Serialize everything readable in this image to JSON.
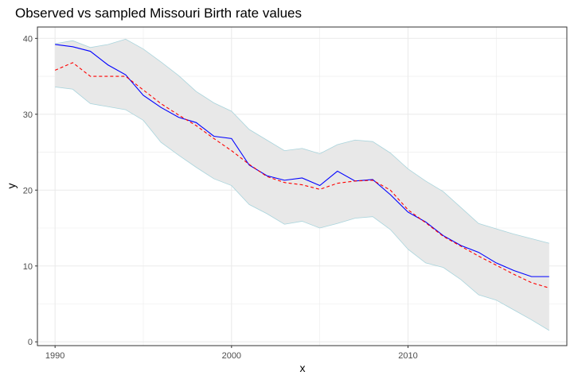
{
  "chart_data": {
    "type": "line",
    "title": "Observed vs sampled Missouri Birth rate values",
    "xlabel": "x",
    "ylabel": "y",
    "xlim": [
      1989,
      2019
    ],
    "ylim": [
      -0.5,
      41.5
    ],
    "x_ticks": [
      1990,
      2000,
      2010
    ],
    "y_ticks": [
      0,
      10,
      20,
      30,
      40
    ],
    "grid": true,
    "legend": "none",
    "colors": {
      "observed": "#0000ff",
      "sampled": "#ff0000",
      "band_fill": "#e8e8e8",
      "band_edge": "#a9d4dc",
      "grid": "#ebebeb",
      "axis_border": "#333333"
    },
    "x": [
      1990,
      1991,
      1992,
      1993,
      1994,
      1995,
      1996,
      1997,
      1998,
      1999,
      2000,
      2001,
      2002,
      2003,
      2004,
      2005,
      2006,
      2007,
      2008,
      2009,
      2010,
      2011,
      2012,
      2013,
      2014,
      2015,
      2016,
      2017,
      2018
    ],
    "series": [
      {
        "key": "observed",
        "style": "solid",
        "values": [
          39.2,
          38.9,
          38.3,
          36.5,
          35.2,
          32.5,
          30.9,
          29.6,
          28.9,
          27.1,
          26.8,
          23.3,
          21.9,
          21.3,
          21.6,
          20.6,
          22.5,
          21.2,
          21.4,
          19.4,
          17.1,
          15.8,
          14.0,
          12.7,
          11.8,
          10.4,
          9.4,
          8.6,
          8.6
        ]
      },
      {
        "key": "sampled",
        "style": "dashed",
        "values": [
          35.8,
          36.8,
          35.0,
          35.0,
          35.0,
          33.2,
          31.4,
          29.9,
          28.5,
          26.8,
          25.2,
          23.4,
          21.8,
          21.0,
          20.7,
          20.1,
          20.9,
          21.2,
          21.3,
          20.0,
          17.4,
          15.7,
          13.9,
          12.6,
          11.3,
          10.1,
          8.9,
          7.8,
          7.1
        ]
      }
    ],
    "band": {
      "upper": [
        39.3,
        39.7,
        38.8,
        39.2,
        39.9,
        38.6,
        36.9,
        35.1,
        33.0,
        31.5,
        30.4,
        28.0,
        26.6,
        25.2,
        25.5,
        24.8,
        26.0,
        26.6,
        26.4,
        24.9,
        22.8,
        21.2,
        19.8,
        17.7,
        15.6,
        14.9,
        14.2,
        13.6,
        13.0
      ],
      "lower": [
        33.6,
        33.3,
        31.4,
        31.0,
        30.6,
        29.2,
        26.3,
        24.6,
        23.0,
        21.5,
        20.6,
        18.1,
        16.9,
        15.5,
        15.9,
        15.0,
        15.6,
        16.3,
        16.5,
        14.8,
        12.2,
        10.4,
        9.8,
        8.2,
        6.2,
        5.5,
        4.2,
        2.9,
        1.5
      ]
    }
  }
}
